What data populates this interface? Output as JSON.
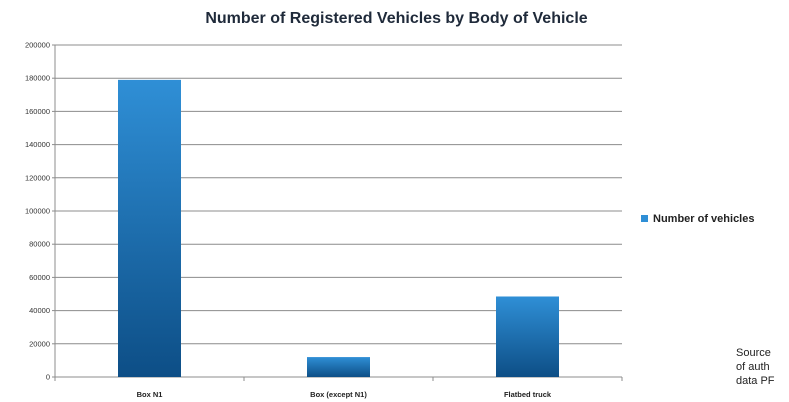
{
  "chart_data": {
    "type": "bar",
    "title": "Number of Registered Vehicles by Body of Vehicle",
    "categories": [
      "Box N1",
      "Box (except N1)",
      "Flatbed truck"
    ],
    "series": [
      {
        "name": "Number of vehicles",
        "values": [
          179000,
          12000,
          48500
        ]
      }
    ],
    "xlabel": "",
    "ylabel": "",
    "ylim": [
      0,
      200000
    ],
    "yticks": [
      0,
      20000,
      40000,
      60000,
      80000,
      100000,
      120000,
      140000,
      160000,
      180000,
      200000
    ],
    "grid": true,
    "legend_position": "right",
    "colors": {
      "bar_top": "#2f8fd6",
      "bar_bottom": "#0d4e86",
      "grid": "#8c8c8c"
    }
  },
  "source_note": [
    "Source",
    "of auth",
    "data PF"
  ]
}
